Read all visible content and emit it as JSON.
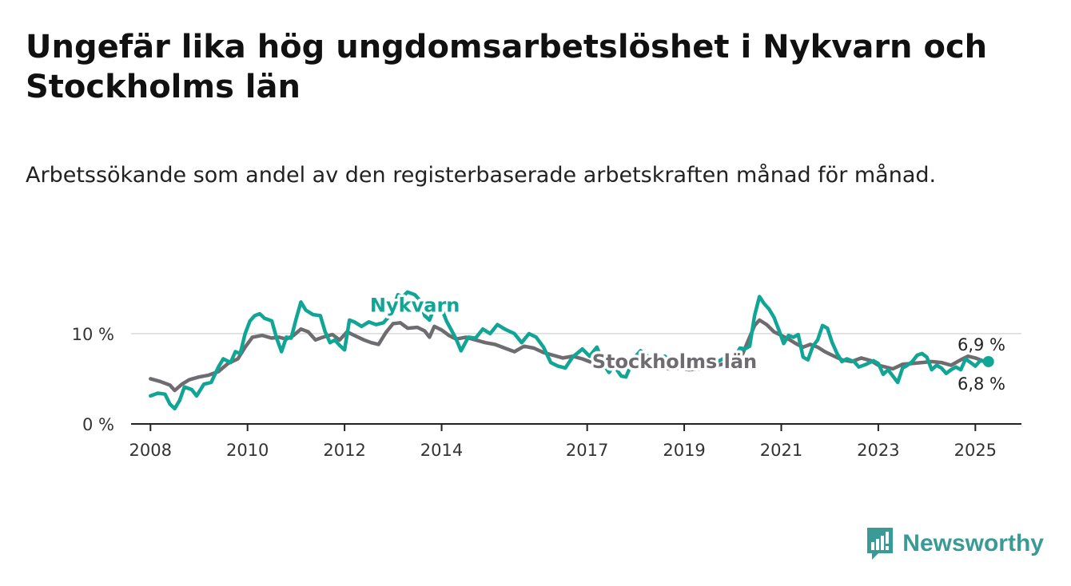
{
  "page": {
    "title": "Ungefär lika hög ungdomsarbetslöshet i Nykvarn och Stockholms län",
    "subtitle": "Arbetssökande som andel av den registerbaserade arbetskraften månad för månad.",
    "brand": "Newsworthy"
  },
  "colors": {
    "nykvarn": "#10a594",
    "stockholm": "#6e6c70",
    "axis": "#222222",
    "grid": "#d9d9d9",
    "brand": "#3a9a96"
  },
  "chart_data": {
    "type": "line",
    "x_unit": "year",
    "ylim": [
      0,
      16
    ],
    "xlim": [
      2007.6,
      2025.95
    ],
    "grid": "horizontal",
    "y_ticks": [
      {
        "value": 0,
        "label": "0 %"
      },
      {
        "value": 10,
        "label": "10 %"
      }
    ],
    "x_ticks": [
      {
        "value": 2008,
        "label": "2008"
      },
      {
        "value": 2010,
        "label": "2010"
      },
      {
        "value": 2012,
        "label": "2012"
      },
      {
        "value": 2014,
        "label": "2014"
      },
      {
        "value": 2017,
        "label": "2017"
      },
      {
        "value": 2019,
        "label": "2019"
      },
      {
        "value": 2021,
        "label": "2021"
      },
      {
        "value": 2023,
        "label": "2023"
      },
      {
        "value": 2025,
        "label": "2025"
      }
    ],
    "series": [
      {
        "name": "Stockholms län",
        "color": "#6e6c70",
        "end_label": "6,8 %",
        "points": [
          [
            2008.0,
            5.0
          ],
          [
            2008.2,
            4.7
          ],
          [
            2008.4,
            4.3
          ],
          [
            2008.5,
            3.7
          ],
          [
            2008.65,
            4.4
          ],
          [
            2008.8,
            4.9
          ],
          [
            2009.0,
            5.2
          ],
          [
            2009.2,
            5.4
          ],
          [
            2009.4,
            5.8
          ],
          [
            2009.6,
            6.7
          ],
          [
            2009.8,
            7.2
          ],
          [
            2009.95,
            8.5
          ],
          [
            2010.1,
            9.6
          ],
          [
            2010.3,
            9.8
          ],
          [
            2010.5,
            9.5
          ],
          [
            2010.65,
            9.6
          ],
          [
            2010.8,
            9.4
          ],
          [
            2010.95,
            9.8
          ],
          [
            2011.1,
            10.5
          ],
          [
            2011.25,
            10.2
          ],
          [
            2011.4,
            9.3
          ],
          [
            2011.55,
            9.6
          ],
          [
            2011.75,
            9.9
          ],
          [
            2011.9,
            9.3
          ],
          [
            2012.05,
            10.2
          ],
          [
            2012.2,
            9.8
          ],
          [
            2012.4,
            9.3
          ],
          [
            2012.55,
            9.0
          ],
          [
            2012.7,
            8.8
          ],
          [
            2012.85,
            10.1
          ],
          [
            2013.0,
            11.1
          ],
          [
            2013.15,
            11.2
          ],
          [
            2013.3,
            10.6
          ],
          [
            2013.5,
            10.7
          ],
          [
            2013.65,
            10.3
          ],
          [
            2013.75,
            9.6
          ],
          [
            2013.85,
            10.8
          ],
          [
            2014.0,
            10.4
          ],
          [
            2014.15,
            9.8
          ],
          [
            2014.3,
            9.4
          ],
          [
            2014.5,
            9.6
          ],
          [
            2014.7,
            9.3
          ],
          [
            2014.9,
            9.0
          ],
          [
            2015.1,
            8.8
          ],
          [
            2015.3,
            8.4
          ],
          [
            2015.5,
            8.0
          ],
          [
            2015.7,
            8.6
          ],
          [
            2015.9,
            8.4
          ],
          [
            2016.1,
            7.9
          ],
          [
            2016.3,
            7.6
          ],
          [
            2016.5,
            7.3
          ],
          [
            2016.7,
            7.5
          ],
          [
            2016.9,
            7.2
          ],
          [
            2017.1,
            6.8
          ],
          [
            2017.3,
            6.5
          ],
          [
            2017.5,
            6.6
          ],
          [
            2017.7,
            6.8
          ],
          [
            2017.9,
            6.5
          ],
          [
            2018.1,
            6.2
          ],
          [
            2018.3,
            6.4
          ],
          [
            2018.5,
            6.3
          ],
          [
            2018.7,
            6.1
          ],
          [
            2018.9,
            6.2
          ],
          [
            2019.1,
            6.0
          ],
          [
            2019.3,
            6.1
          ],
          [
            2019.5,
            6.3
          ],
          [
            2019.7,
            6.5
          ],
          [
            2019.9,
            6.8
          ],
          [
            2020.1,
            7.0
          ],
          [
            2020.2,
            7.7
          ],
          [
            2020.3,
            9.0
          ],
          [
            2020.45,
            10.9
          ],
          [
            2020.55,
            11.5
          ],
          [
            2020.7,
            11.0
          ],
          [
            2020.85,
            10.2
          ],
          [
            2021.0,
            9.8
          ],
          [
            2021.15,
            9.4
          ],
          [
            2021.3,
            8.9
          ],
          [
            2021.45,
            8.5
          ],
          [
            2021.6,
            8.8
          ],
          [
            2021.75,
            8.5
          ],
          [
            2021.9,
            8.0
          ],
          [
            2022.05,
            7.6
          ],
          [
            2022.25,
            7.1
          ],
          [
            2022.45,
            6.9
          ],
          [
            2022.65,
            7.3
          ],
          [
            2022.85,
            7.0
          ],
          [
            2023.0,
            6.5
          ],
          [
            2023.15,
            6.3
          ],
          [
            2023.3,
            6.1
          ],
          [
            2023.5,
            6.6
          ],
          [
            2023.7,
            6.7
          ],
          [
            2023.9,
            6.8
          ],
          [
            2024.1,
            6.9
          ],
          [
            2024.3,
            6.8
          ],
          [
            2024.5,
            6.5
          ],
          [
            2024.7,
            7.1
          ],
          [
            2024.85,
            7.5
          ],
          [
            2025.0,
            7.3
          ],
          [
            2025.15,
            7.0
          ],
          [
            2025.27,
            6.8
          ]
        ]
      },
      {
        "name": "Nykvarn",
        "color": "#10a594",
        "end_label": "6,9 %",
        "points": [
          [
            2008.0,
            3.1
          ],
          [
            2008.15,
            3.4
          ],
          [
            2008.3,
            3.3
          ],
          [
            2008.4,
            2.2
          ],
          [
            2008.5,
            1.7
          ],
          [
            2008.6,
            2.6
          ],
          [
            2008.7,
            4.1
          ],
          [
            2008.85,
            3.8
          ],
          [
            2008.95,
            3.1
          ],
          [
            2009.1,
            4.4
          ],
          [
            2009.25,
            4.6
          ],
          [
            2009.4,
            6.3
          ],
          [
            2009.5,
            7.2
          ],
          [
            2009.65,
            6.8
          ],
          [
            2009.75,
            8.0
          ],
          [
            2009.85,
            7.8
          ],
          [
            2009.95,
            10.0
          ],
          [
            2010.05,
            11.4
          ],
          [
            2010.15,
            12.0
          ],
          [
            2010.25,
            12.2
          ],
          [
            2010.35,
            11.7
          ],
          [
            2010.5,
            11.4
          ],
          [
            2010.6,
            9.5
          ],
          [
            2010.7,
            8.0
          ],
          [
            2010.8,
            9.6
          ],
          [
            2010.9,
            9.5
          ],
          [
            2011.0,
            11.6
          ],
          [
            2011.1,
            13.5
          ],
          [
            2011.2,
            12.6
          ],
          [
            2011.35,
            12.1
          ],
          [
            2011.5,
            12.0
          ],
          [
            2011.6,
            10.2
          ],
          [
            2011.7,
            9.0
          ],
          [
            2011.8,
            9.3
          ],
          [
            2011.9,
            8.7
          ],
          [
            2012.0,
            8.2
          ],
          [
            2012.1,
            11.5
          ],
          [
            2012.2,
            11.3
          ],
          [
            2012.35,
            10.8
          ],
          [
            2012.5,
            11.3
          ],
          [
            2012.65,
            11.0
          ],
          [
            2012.8,
            11.2
          ],
          [
            2012.9,
            11.8
          ],
          [
            2013.0,
            12.8
          ],
          [
            2013.1,
            14.3
          ],
          [
            2013.2,
            14.1
          ],
          [
            2013.3,
            14.6
          ],
          [
            2013.45,
            14.3
          ],
          [
            2013.55,
            13.7
          ],
          [
            2013.65,
            12.0
          ],
          [
            2013.75,
            11.5
          ],
          [
            2013.85,
            12.9
          ],
          [
            2014.0,
            12.8
          ],
          [
            2014.1,
            11.4
          ],
          [
            2014.2,
            10.4
          ],
          [
            2014.3,
            9.4
          ],
          [
            2014.4,
            8.1
          ],
          [
            2014.55,
            9.6
          ],
          [
            2014.7,
            9.5
          ],
          [
            2014.85,
            10.5
          ],
          [
            2015.0,
            10.0
          ],
          [
            2015.15,
            11.0
          ],
          [
            2015.3,
            10.5
          ],
          [
            2015.5,
            10.0
          ],
          [
            2015.65,
            9.0
          ],
          [
            2015.8,
            10.0
          ],
          [
            2015.95,
            9.6
          ],
          [
            2016.1,
            8.5
          ],
          [
            2016.25,
            6.8
          ],
          [
            2016.4,
            6.4
          ],
          [
            2016.55,
            6.2
          ],
          [
            2016.7,
            7.4
          ],
          [
            2016.9,
            8.3
          ],
          [
            2017.05,
            7.5
          ],
          [
            2017.2,
            8.5
          ],
          [
            2017.35,
            6.5
          ],
          [
            2017.45,
            5.7
          ],
          [
            2017.55,
            6.5
          ],
          [
            2017.7,
            5.3
          ],
          [
            2017.8,
            5.2
          ],
          [
            2017.9,
            6.5
          ],
          [
            2018.0,
            7.5
          ],
          [
            2018.1,
            8.1
          ],
          [
            2018.25,
            7.5
          ],
          [
            2018.35,
            6.8
          ],
          [
            2018.5,
            6.5
          ],
          [
            2018.6,
            7.5
          ],
          [
            2018.7,
            7.0
          ],
          [
            2018.8,
            6.7
          ],
          [
            2018.9,
            7.0
          ],
          [
            2019.05,
            6.8
          ],
          [
            2019.2,
            6.5
          ],
          [
            2019.35,
            6.4
          ],
          [
            2019.5,
            6.6
          ],
          [
            2019.65,
            6.8
          ],
          [
            2019.8,
            7.2
          ],
          [
            2019.95,
            7.5
          ],
          [
            2020.05,
            7.5
          ],
          [
            2020.15,
            8.4
          ],
          [
            2020.25,
            8.3
          ],
          [
            2020.35,
            8.6
          ],
          [
            2020.45,
            12.0
          ],
          [
            2020.55,
            14.1
          ],
          [
            2020.65,
            13.3
          ],
          [
            2020.75,
            12.7
          ],
          [
            2020.85,
            11.8
          ],
          [
            2020.95,
            10.4
          ],
          [
            2021.05,
            8.9
          ],
          [
            2021.15,
            9.8
          ],
          [
            2021.25,
            9.6
          ],
          [
            2021.35,
            9.9
          ],
          [
            2021.45,
            7.4
          ],
          [
            2021.55,
            7.1
          ],
          [
            2021.65,
            8.6
          ],
          [
            2021.75,
            9.3
          ],
          [
            2021.85,
            10.9
          ],
          [
            2021.95,
            10.6
          ],
          [
            2022.05,
            9.0
          ],
          [
            2022.15,
            7.8
          ],
          [
            2022.25,
            6.9
          ],
          [
            2022.35,
            7.2
          ],
          [
            2022.5,
            6.9
          ],
          [
            2022.6,
            6.3
          ],
          [
            2022.75,
            6.6
          ],
          [
            2022.9,
            7.0
          ],
          [
            2023.0,
            6.7
          ],
          [
            2023.1,
            5.5
          ],
          [
            2023.2,
            6.0
          ],
          [
            2023.3,
            5.3
          ],
          [
            2023.4,
            4.6
          ],
          [
            2023.5,
            6.2
          ],
          [
            2023.6,
            6.5
          ],
          [
            2023.7,
            6.9
          ],
          [
            2023.8,
            7.6
          ],
          [
            2023.9,
            7.8
          ],
          [
            2024.0,
            7.4
          ],
          [
            2024.1,
            6.0
          ],
          [
            2024.2,
            6.5
          ],
          [
            2024.3,
            6.2
          ],
          [
            2024.4,
            5.6
          ],
          [
            2024.5,
            6.0
          ],
          [
            2024.6,
            6.3
          ],
          [
            2024.7,
            6.0
          ],
          [
            2024.8,
            7.2
          ],
          [
            2024.9,
            6.8
          ],
          [
            2025.0,
            6.4
          ],
          [
            2025.1,
            7.0
          ],
          [
            2025.2,
            6.9
          ],
          [
            2025.27,
            6.9
          ]
        ]
      }
    ],
    "labels": [
      {
        "text": "Nykvarn",
        "series": "Nykvarn",
        "x": 2013.45,
        "y": 12.4
      },
      {
        "text": "Stockholms län",
        "series": "Stockholms län",
        "x": 2018.8,
        "y": 6.2
      }
    ]
  }
}
